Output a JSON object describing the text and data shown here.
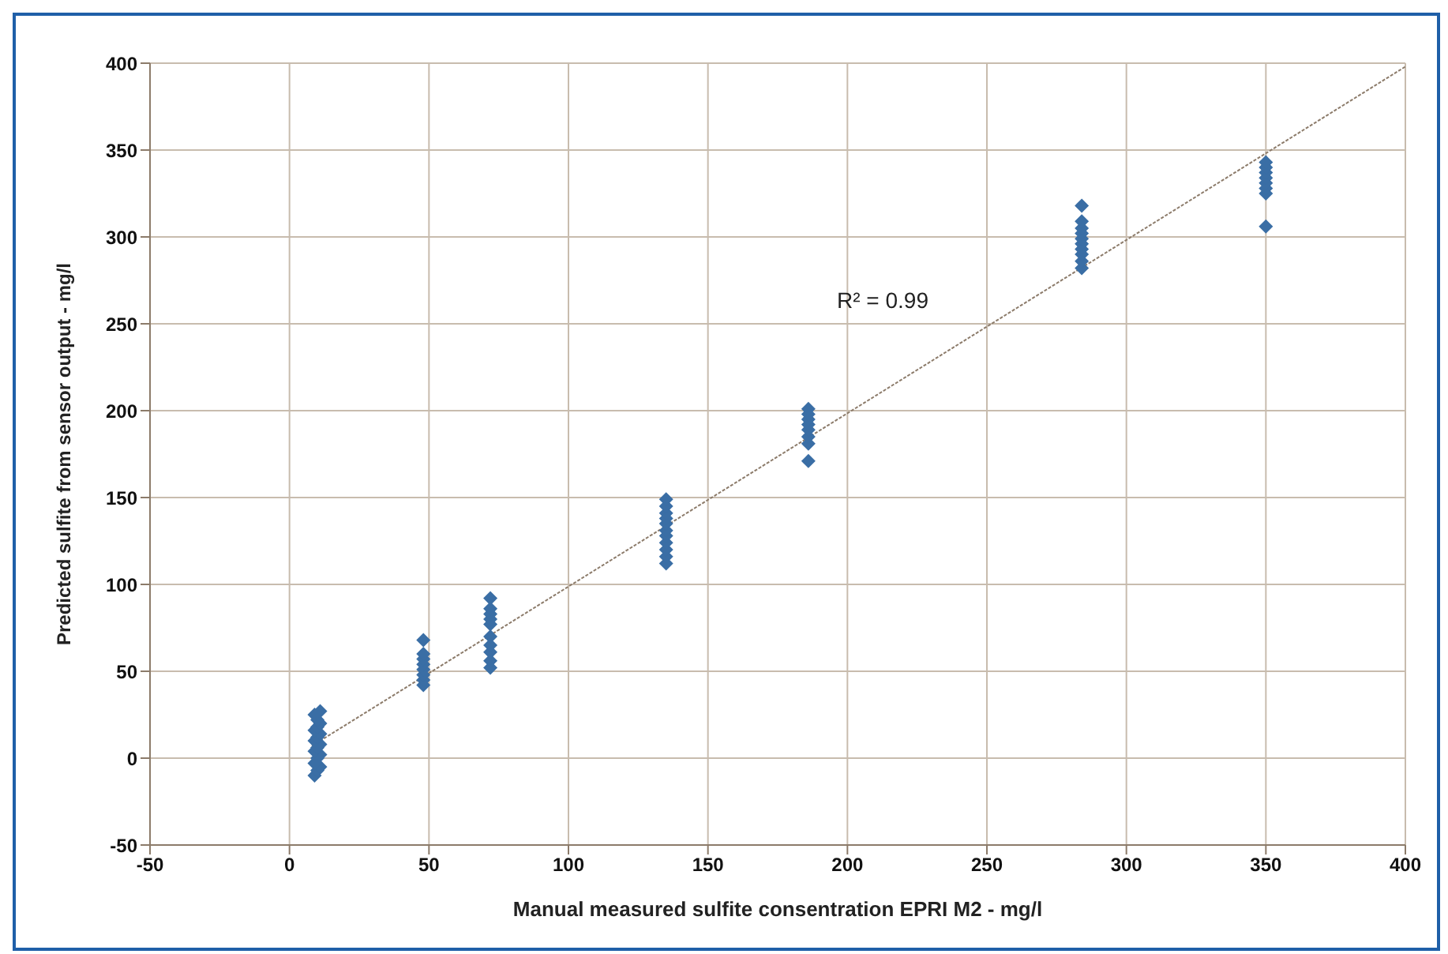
{
  "chart_data": {
    "type": "scatter",
    "xlabel": "Manual measured sulfite consentration EPRI M2 - mg/l",
    "ylabel": "Predicted sulfite from sensor output - mg/l",
    "xlim": [
      -50,
      400
    ],
    "xticks": [
      -50,
      0,
      50,
      100,
      150,
      200,
      250,
      300,
      350,
      400
    ],
    "ylim": [
      -50,
      400
    ],
    "yticks": [
      -50,
      0,
      50,
      100,
      150,
      200,
      250,
      300,
      350,
      400
    ],
    "grid": true,
    "annotations": [
      "R² = 0.99"
    ],
    "series": [
      {
        "marker": "diamond",
        "color": "#3a6ea5",
        "x": [
          9,
          10,
          11,
          9,
          10,
          11,
          9,
          10,
          11,
          9,
          10,
          11,
          9,
          10,
          11,
          10,
          9,
          11,
          48,
          48,
          48,
          48,
          48,
          48,
          48,
          48,
          72,
          72,
          72,
          72,
          72,
          72,
          72,
          72,
          72,
          72,
          135,
          135,
          135,
          135,
          135,
          135,
          135,
          135,
          135,
          135,
          135,
          186,
          186,
          186,
          186,
          186,
          186,
          186,
          186,
          284,
          284,
          284,
          284,
          284,
          284,
          284,
          284,
          284,
          284,
          350,
          350,
          350,
          350,
          350,
          350,
          350,
          350
        ],
        "values": [
          -10,
          -7,
          -5,
          -3,
          0,
          2,
          4,
          6,
          8,
          10,
          12,
          14,
          16,
          18,
          20,
          22,
          25,
          27,
          42,
          45,
          48,
          51,
          54,
          57,
          60,
          68,
          52,
          56,
          61,
          65,
          70,
          77,
          80,
          83,
          86,
          92,
          112,
          116,
          120,
          124,
          128,
          131,
          135,
          138,
          141,
          145,
          149,
          171,
          181,
          185,
          189,
          192,
          195,
          198,
          201,
          282,
          286,
          290,
          293,
          296,
          299,
          302,
          305,
          309,
          318,
          306,
          325,
          328,
          331,
          334,
          337,
          340,
          343
        ]
      },
      {
        "type": "line",
        "marker": "none",
        "line_style": "dotted",
        "color": "#8c7b6a",
        "x": [
          8,
          400
        ],
        "values": [
          7,
          398
        ]
      }
    ]
  }
}
